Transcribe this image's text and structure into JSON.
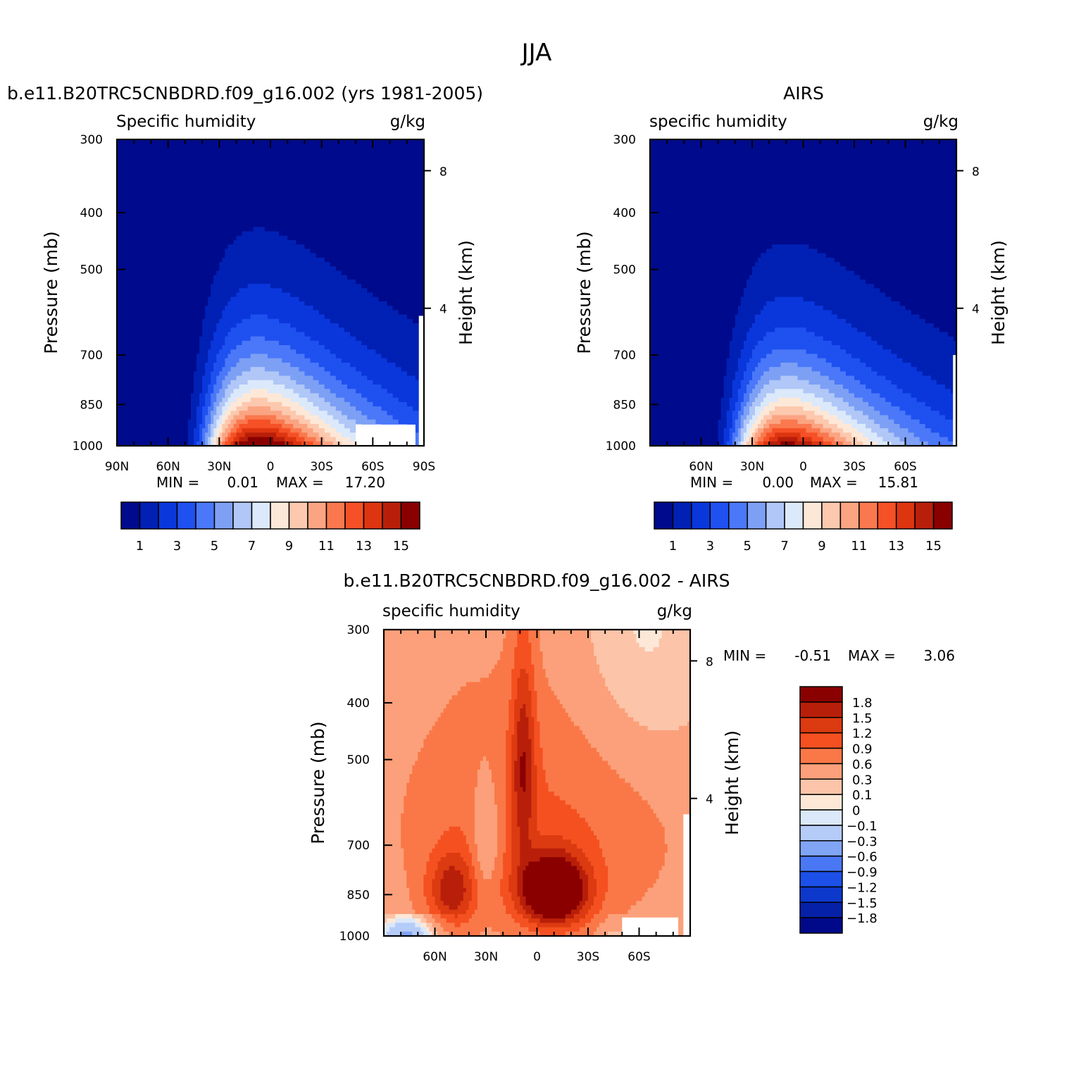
{
  "figure": {
    "title": "JJA",
    "lat_ticks_full": [
      "90N",
      "60N",
      "30N",
      "0",
      "30S",
      "60S",
      "90S"
    ],
    "lat_ticks_short": [
      "60N",
      "30N",
      "0",
      "30S",
      "60S"
    ],
    "pressure_ticks": [
      "300",
      "400",
      "500",
      "700",
      "850",
      "1000"
    ],
    "height_ticks": [
      "8",
      "4"
    ],
    "y_label": "Pressure (mb)",
    "y2_label": "Height (km)",
    "min_label": "MIN =",
    "max_label": "MAX ="
  },
  "colors": {
    "abs_palette": [
      "#000a8c",
      "#0021b4",
      "#0a37dc",
      "#1f50f0",
      "#4a78f8",
      "#7da0f5",
      "#b0c7f7",
      "#dbe9fb",
      "#fde8d8",
      "#fcc8ae",
      "#fba482",
      "#fa784e",
      "#f55026",
      "#dd3510",
      "#b81f0a",
      "#8a0000"
    ],
    "diff_palette": [
      "#00098a",
      "#0521a8",
      "#0d38cc",
      "#1c50e8",
      "#4a78f5",
      "#80a5f5",
      "#b5ccf8",
      "#dbe8fa",
      "#fde8d8",
      "#fcc4a8",
      "#fba07a",
      "#fa7848",
      "#f55020",
      "#dc3a10",
      "#b81f0a",
      "#8a0000"
    ]
  },
  "chart_data": [
    {
      "type": "heatmap",
      "panel_title": "b.e11.B20TRC5CNBDRD.f09_g16.002 (yrs 1981-2005)",
      "variable": "Specific humidity",
      "units": "g/kg",
      "min": "0.01",
      "max": "17.20",
      "x": [
        90,
        75,
        60,
        45,
        30,
        15,
        0,
        -15,
        -30,
        -45,
        -60,
        -75,
        -90
      ],
      "levels": [
        300,
        400,
        500,
        700,
        850,
        1000
      ],
      "colorbar_labels": [
        "1",
        "3",
        "5",
        "7",
        "9",
        "11",
        "13",
        "15"
      ]
    },
    {
      "type": "heatmap",
      "panel_title": "AIRS",
      "variable": "specific humidity",
      "units": "g/kg",
      "min": "0.00",
      "max": "15.81",
      "x": [
        90,
        75,
        60,
        45,
        30,
        15,
        0,
        -15,
        -30,
        -45,
        -60,
        -75,
        -90
      ],
      "levels": [
        300,
        400,
        500,
        700,
        850,
        1000
      ],
      "colorbar_labels": [
        "1",
        "3",
        "5",
        "7",
        "9",
        "11",
        "13",
        "15"
      ]
    },
    {
      "type": "heatmap",
      "panel_title": "b.e11.B20TRC5CNBDRD.f09_g16.002 - AIRS",
      "variable": "specific humidity",
      "units": "g/kg",
      "min": "-0.51",
      "max": "3.06",
      "x": [
        90,
        75,
        60,
        45,
        30,
        15,
        0,
        -15,
        -30,
        -45,
        -60,
        -75,
        -90
      ],
      "levels": [
        300,
        400,
        500,
        700,
        850,
        1000
      ],
      "colorbar_labels": [
        "1.8",
        "1.5",
        "1.2",
        "0.9",
        "0.6",
        "0.3",
        "0.1",
        "0",
        "-0.1",
        "-0.3",
        "-0.6",
        "-0.9",
        "-1.2",
        "-1.5",
        "-1.8"
      ]
    }
  ]
}
